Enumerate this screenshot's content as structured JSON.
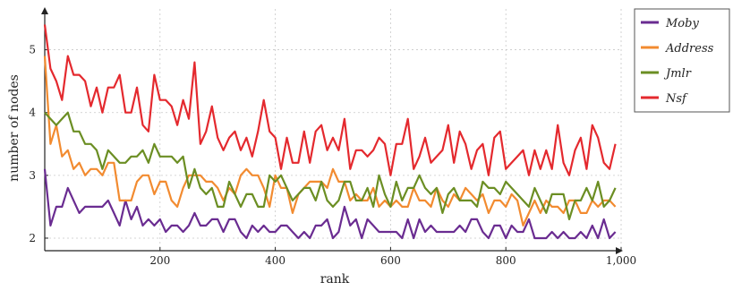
{
  "chart_data": {
    "type": "line",
    "xlabel": "rank",
    "ylabel": "number of nodes",
    "xlim": [
      0,
      1000
    ],
    "ylim": [
      1.8,
      5.65
    ],
    "xticks": [
      200,
      400,
      600,
      800,
      1000
    ],
    "xtick_labels": [
      "200",
      "400",
      "600",
      "800",
      "1,000"
    ],
    "yticks": [
      2,
      3,
      4,
      5
    ],
    "ytick_labels": [
      "2",
      "3",
      "4",
      "5"
    ],
    "grid": true,
    "legend_position": "top-right outside",
    "x": [
      0,
      10,
      20,
      30,
      40,
      50,
      60,
      70,
      80,
      90,
      100,
      110,
      120,
      130,
      140,
      150,
      160,
      170,
      180,
      190,
      200,
      210,
      220,
      230,
      240,
      250,
      260,
      270,
      280,
      290,
      300,
      310,
      320,
      330,
      340,
      350,
      360,
      370,
      380,
      390,
      400,
      410,
      420,
      430,
      440,
      450,
      460,
      470,
      480,
      490,
      500,
      510,
      520,
      530,
      540,
      550,
      560,
      570,
      580,
      590,
      600,
      610,
      620,
      630,
      640,
      650,
      660,
      670,
      680,
      690,
      700,
      710,
      720,
      730,
      740,
      750,
      760,
      770,
      780,
      790,
      800,
      810,
      820,
      830,
      840,
      850,
      860,
      870,
      880,
      890,
      900,
      910,
      920,
      930,
      940,
      950,
      960,
      970,
      980,
      990
    ],
    "series": [
      {
        "name": "Moby",
        "color": "#6a2c91",
        "values": [
          3.1,
          2.2,
          2.5,
          2.5,
          2.8,
          2.6,
          2.4,
          2.5,
          2.5,
          2.5,
          2.5,
          2.6,
          2.4,
          2.2,
          2.6,
          2.3,
          2.5,
          2.2,
          2.3,
          2.2,
          2.3,
          2.1,
          2.2,
          2.2,
          2.1,
          2.2,
          2.4,
          2.2,
          2.2,
          2.3,
          2.3,
          2.1,
          2.3,
          2.3,
          2.1,
          2.0,
          2.2,
          2.1,
          2.2,
          2.1,
          2.1,
          2.2,
          2.2,
          2.1,
          2.0,
          2.1,
          2.0,
          2.2,
          2.2,
          2.3,
          2.0,
          2.1,
          2.5,
          2.2,
          2.3,
          2.0,
          2.3,
          2.2,
          2.1,
          2.1,
          2.1,
          2.1,
          2.0,
          2.3,
          2.0,
          2.3,
          2.1,
          2.2,
          2.1,
          2.1,
          2.1,
          2.1,
          2.2,
          2.1,
          2.3,
          2.3,
          2.1,
          2.0,
          2.2,
          2.2,
          2.0,
          2.2,
          2.1,
          2.1,
          2.3,
          2.0,
          2.0,
          2.0,
          2.1,
          2.0,
          2.1,
          2.0,
          2.0,
          2.1,
          2.0,
          2.2,
          2.0,
          2.3,
          2.0,
          2.1
        ]
      },
      {
        "name": "Address",
        "color": "#f28b30",
        "values": [
          4.9,
          3.5,
          3.8,
          3.3,
          3.4,
          3.1,
          3.2,
          3.0,
          3.1,
          3.1,
          3.0,
          3.2,
          3.2,
          2.6,
          2.6,
          2.6,
          2.9,
          3.0,
          3.0,
          2.7,
          2.9,
          2.9,
          2.6,
          2.5,
          2.8,
          3.0,
          3.0,
          3.0,
          2.9,
          2.9,
          2.8,
          2.6,
          2.8,
          2.7,
          3.0,
          3.1,
          3.0,
          3.0,
          2.8,
          2.5,
          3.0,
          2.8,
          2.8,
          2.4,
          2.7,
          2.8,
          2.9,
          2.9,
          2.9,
          2.8,
          3.1,
          2.9,
          2.9,
          2.6,
          2.7,
          2.6,
          2.6,
          2.8,
          2.5,
          2.6,
          2.5,
          2.6,
          2.5,
          2.5,
          2.8,
          2.6,
          2.6,
          2.5,
          2.8,
          2.6,
          2.5,
          2.7,
          2.6,
          2.8,
          2.7,
          2.6,
          2.7,
          2.4,
          2.6,
          2.6,
          2.5,
          2.7,
          2.6,
          2.2,
          2.4,
          2.6,
          2.4,
          2.6,
          2.5,
          2.5,
          2.4,
          2.6,
          2.6,
          2.4,
          2.4,
          2.6,
          2.5,
          2.6,
          2.6,
          2.5
        ]
      },
      {
        "name": "Jmlr",
        "color": "#6b8e23",
        "values": [
          4.0,
          3.9,
          3.8,
          3.9,
          4.0,
          3.7,
          3.7,
          3.5,
          3.5,
          3.4,
          3.1,
          3.4,
          3.3,
          3.2,
          3.2,
          3.3,
          3.3,
          3.4,
          3.2,
          3.5,
          3.3,
          3.3,
          3.3,
          3.2,
          3.3,
          2.8,
          3.1,
          2.8,
          2.7,
          2.8,
          2.5,
          2.5,
          2.9,
          2.7,
          2.5,
          2.7,
          2.7,
          2.5,
          2.5,
          3.0,
          2.9,
          3.0,
          2.8,
          2.6,
          2.7,
          2.8,
          2.8,
          2.6,
          2.9,
          2.6,
          2.5,
          2.6,
          2.9,
          2.9,
          2.6,
          2.6,
          2.8,
          2.5,
          3.0,
          2.7,
          2.5,
          2.9,
          2.6,
          2.8,
          2.8,
          3.0,
          2.8,
          2.7,
          2.8,
          2.4,
          2.7,
          2.8,
          2.6,
          2.6,
          2.6,
          2.5,
          2.9,
          2.8,
          2.8,
          2.7,
          2.9,
          2.8,
          2.7,
          2.6,
          2.5,
          2.8,
          2.6,
          2.4,
          2.7,
          2.7,
          2.7,
          2.3,
          2.6,
          2.6,
          2.8,
          2.6,
          2.9,
          2.5,
          2.6,
          2.8
        ]
      },
      {
        "name": "Nsf",
        "color": "#e4292e",
        "values": [
          5.4,
          4.7,
          4.5,
          4.2,
          4.9,
          4.6,
          4.6,
          4.5,
          4.1,
          4.4,
          4.0,
          4.4,
          4.4,
          4.6,
          4.0,
          4.0,
          4.4,
          3.8,
          3.7,
          4.6,
          4.2,
          4.2,
          4.1,
          3.8,
          4.2,
          3.9,
          4.8,
          3.5,
          3.7,
          4.1,
          3.6,
          3.4,
          3.6,
          3.7,
          3.4,
          3.6,
          3.3,
          3.7,
          4.2,
          3.7,
          3.6,
          3.1,
          3.6,
          3.2,
          3.2,
          3.7,
          3.2,
          3.7,
          3.8,
          3.4,
          3.6,
          3.4,
          3.9,
          3.1,
          3.4,
          3.4,
          3.3,
          3.4,
          3.6,
          3.5,
          3.0,
          3.5,
          3.5,
          3.9,
          3.1,
          3.3,
          3.6,
          3.2,
          3.3,
          3.4,
          3.8,
          3.2,
          3.7,
          3.5,
          3.1,
          3.4,
          3.5,
          3.0,
          3.6,
          3.7,
          3.1,
          3.2,
          3.3,
          3.4,
          3.0,
          3.4,
          3.1,
          3.4,
          3.1,
          3.8,
          3.2,
          3.0,
          3.4,
          3.6,
          3.1,
          3.8,
          3.6,
          3.2,
          3.1,
          3.5
        ]
      }
    ]
  }
}
